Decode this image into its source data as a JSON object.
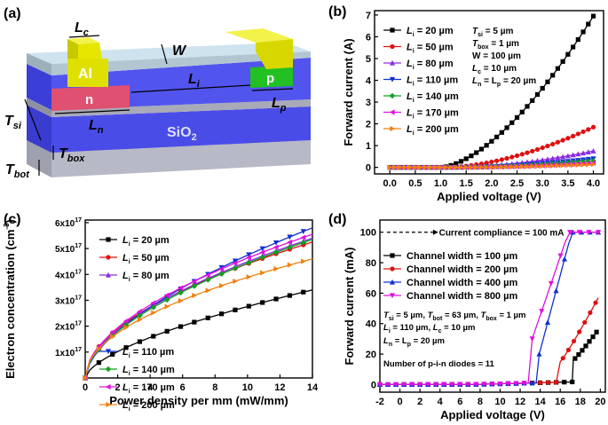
{
  "panels": {
    "a": {
      "label": "(a)",
      "labels": {
        "lc": "L",
        "lc_sub": "c",
        "w": "W",
        "al": "Al",
        "p": "p",
        "n": "n",
        "li": "L",
        "li_sub": "i",
        "ln": "L",
        "ln_sub": "n",
        "lp": "L",
        "lp_sub": "p",
        "tsi": "T",
        "tsi_sub": "si",
        "sio2": "SiO",
        "sio2_sub": "2",
        "tbox": "T",
        "tbox_sub": "box",
        "tbot": "T",
        "tbot_sub": "bot"
      },
      "colors": {
        "top_face": "#cfe3ee",
        "front_face": "#a9bdc8",
        "si": "#4a4ce8",
        "si_top": "#5a5cf0",
        "box": "#a8aab8",
        "al": "#e6e600",
        "p": "#22c022",
        "n": "#e05070"
      }
    },
    "b": {
      "label": "(b)"
    },
    "c": {
      "label": "(c)"
    },
    "d": {
      "label": "(d)"
    }
  },
  "chart_data": [
    {
      "id": "b",
      "type": "line",
      "xlabel": "Applied voltage (V)",
      "ylabel": "Forward current (A)",
      "xlim": [
        -0.3,
        4.2
      ],
      "ylim": [
        -0.3,
        7.2
      ],
      "xticks": [
        "0.0",
        "0.5",
        "1.0",
        "1.5",
        "2.0",
        "2.5",
        "3.0",
        "3.5",
        "4.0"
      ],
      "xtick_values": [
        0,
        0.5,
        1,
        1.5,
        2,
        2.5,
        3,
        3.5,
        4
      ],
      "yticks": [
        "0",
        "1",
        "2",
        "3",
        "4",
        "5",
        "6",
        "7"
      ],
      "ytick_values": [
        0,
        1,
        2,
        3,
        4,
        5,
        6,
        7
      ],
      "legend_prefix": "L",
      "legend_sub": "i",
      "annotation": {
        "l1": "T",
        "l1s": "si",
        "l1v": " = 5 µm",
        "l2": "T",
        "l2s": "box",
        "l2v": " = 1 µm",
        "l3": "W = 100 µm",
        "l4": "L",
        "l4s": "c",
        "l4v": " = 10 µm",
        "l5": "L",
        "l5s": "n",
        "l5m": " = L",
        "l5s2": "p",
        "l5v": " = 20 µm"
      },
      "series": [
        {
          "name": " = 20 µm",
          "color": "#000000",
          "marker": "square",
          "turn_on": 1.0,
          "y_at_4": 6.95,
          "exp": 1.6
        },
        {
          "name": " = 50 µm",
          "color": "#e01010",
          "marker": "circle",
          "turn_on": 1.1,
          "y_at_4": 1.85,
          "exp": 1.7
        },
        {
          "name": " = 80 µm",
          "color": "#8a2be2",
          "marker": "triangle",
          "turn_on": 1.2,
          "y_at_4": 0.75,
          "exp": 1.8
        },
        {
          "name": " = 110 µm",
          "color": "#1030d0",
          "marker": "tri-down",
          "turn_on": 1.3,
          "y_at_4": 0.4,
          "exp": 1.8
        },
        {
          "name": " = 140 µm",
          "color": "#10a020",
          "marker": "diamond",
          "turn_on": 1.3,
          "y_at_4": 0.3,
          "exp": 1.8
        },
        {
          "name": " = 170 µm",
          "color": "#e010e0",
          "marker": "tri-left",
          "turn_on": 1.4,
          "y_at_4": 0.2,
          "exp": 1.8
        },
        {
          "name": " = 200 µm",
          "color": "#f08010",
          "marker": "tri-right",
          "turn_on": 1.4,
          "y_at_4": 0.14,
          "exp": 1.8
        }
      ]
    },
    {
      "id": "c",
      "type": "line",
      "xlabel": "Power density per mm (mW/mm)",
      "ylabel": "Electron concentration (cm",
      "ylabel_sup": "-3",
      "ylabel_end": ")",
      "xlim": [
        0,
        14
      ],
      "ylim": [
        0,
        6.1
      ],
      "xticks": [
        "0",
        "2",
        "4",
        "6",
        "8",
        "10",
        "12",
        "14"
      ],
      "xtick_values": [
        0,
        2,
        4,
        6,
        8,
        10,
        12,
        14
      ],
      "yticks": [
        "1x10",
        "2x10",
        "3x10",
        "4x10",
        "5x10",
        "6x10"
      ],
      "ytick_sup": "17",
      "ytick_values": [
        1,
        2,
        3,
        4,
        5,
        6
      ],
      "legend_prefix": "L",
      "legend_sub": "i",
      "series": [
        {
          "name": " = 20 µm",
          "color": "#000000",
          "marker": "square",
          "y_at_14": 3.4,
          "exp": 0.62
        },
        {
          "name": " = 50 µm",
          "color": "#e01010",
          "marker": "circle",
          "y_at_14": 5.25,
          "exp": 0.52
        },
        {
          "name": " = 80 µm",
          "color": "#8a2be2",
          "marker": "triangle",
          "y_at_14": 5.4,
          "exp": 0.55
        },
        {
          "name": " = 110 µm",
          "color": "#1030d0",
          "marker": "tri-down",
          "y_at_14": 5.8,
          "exp": 0.6
        },
        {
          "name": " = 140 µm",
          "color": "#10a020",
          "marker": "diamond",
          "y_at_14": 5.35,
          "exp": 0.56
        },
        {
          "name": " = 170 µm",
          "color": "#e010e0",
          "marker": "tri-left",
          "y_at_14": 5.55,
          "exp": 0.54
        },
        {
          "name": " = 200 µm",
          "color": "#f08010",
          "marker": "tri-right",
          "y_at_14": 4.6,
          "exp": 0.5
        }
      ]
    },
    {
      "id": "d",
      "type": "line",
      "xlabel": "Applied voltage (V)",
      "ylabel": "Forward current (mA)",
      "xlim": [
        -2,
        20.5
      ],
      "ylim": [
        -5,
        108
      ],
      "xticks": [
        "-2",
        "0",
        "2",
        "4",
        "6",
        "8",
        "10",
        "12",
        "14",
        "16",
        "18",
        "20"
      ],
      "xtick_values": [
        -2,
        0,
        2,
        4,
        6,
        8,
        10,
        12,
        14,
        16,
        18,
        20
      ],
      "yticks": [
        "0",
        "20",
        "40",
        "60",
        "80",
        "100"
      ],
      "ytick_values": [
        0,
        20,
        40,
        60,
        80,
        100
      ],
      "compliance_label": "Current compliance = 100 mA",
      "compliance_value": 100,
      "annotation": {
        "l1a": "T",
        "l1as": "si",
        "l1av": " = 5 µm, ",
        "l1b": "T",
        "l1bs": "bot",
        "l1bv": " = 63 µm, ",
        "l1c": "T",
        "l1cs": "box",
        "l1cv": " = 1 µm",
        "l2a": "L",
        "l2as": "i",
        "l2av": " = 110 µm, ",
        "l2b": "L",
        "l2bs": "c",
        "l2bv": " = 10 µm",
        "l3a": "L",
        "l3as": "n",
        "l3m": " = L",
        "l3bs": "p",
        "l3v": " = 20 µm",
        "l4": "Number of p-i-n diodes = 11"
      },
      "series": [
        {
          "name": "Channel width = 100 µm",
          "color": "#000000",
          "marker": "square",
          "breakdown": 17.3,
          "jump_to": 16,
          "y_end": 36,
          "x_end": 19.8
        },
        {
          "name": "Channel width = 200 µm",
          "color": "#e01010",
          "marker": "circle",
          "breakdown": 16.0,
          "jump_to": 15,
          "y_end": 57,
          "x_end": 19.8
        },
        {
          "name": "Channel width = 400 µm",
          "color": "#1030d0",
          "marker": "triangle",
          "breakdown": 13.9,
          "jump_to": 20,
          "y_end": 100,
          "x_end": 19.8
        },
        {
          "name": "Channel width = 800 µm",
          "color": "#e010e0",
          "marker": "tri-down",
          "breakdown": 13.2,
          "jump_to": 30,
          "y_end": 100,
          "x_end": 19.8
        }
      ]
    }
  ]
}
